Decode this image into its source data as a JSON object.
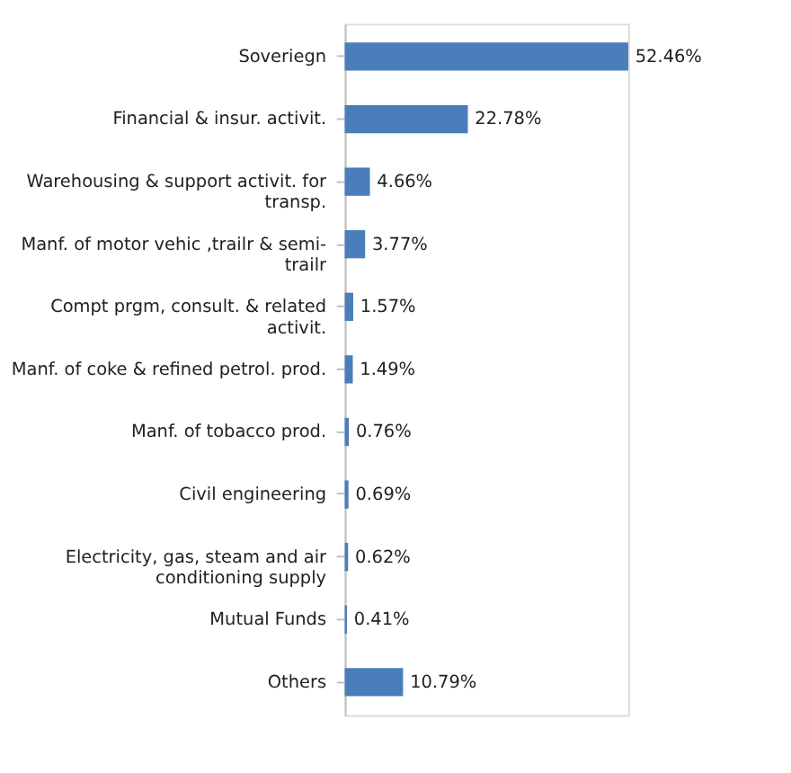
{
  "chart_data": {
    "type": "bar",
    "orientation": "horizontal",
    "data_labels": true,
    "categories": [
      "Soveriegn",
      "Financial & insur. activit.",
      "Warehousing & support activit. for transp.",
      "Manf. of motor vehic ,trailr & semi-trailr",
      "Compt prgm, consult. & related activit.",
      "Manf. of coke & refined petrol. prod.",
      "Manf. of tobacco prod.",
      "Civil engineering",
      "Electricity, gas, steam and air conditioning supply",
      "Mutual Funds",
      "Others"
    ],
    "values": [
      52.46,
      22.78,
      4.66,
      3.77,
      1.57,
      1.49,
      0.76,
      0.69,
      0.62,
      0.41,
      10.79
    ],
    "value_labels": [
      "52.46%",
      "22.78%",
      "4.66%",
      "3.77%",
      "1.57%",
      "1.49%",
      "0.76%",
      "0.69%",
      "0.62%",
      "0.41%",
      "10.79%"
    ],
    "color": "#4a7ebb"
  }
}
